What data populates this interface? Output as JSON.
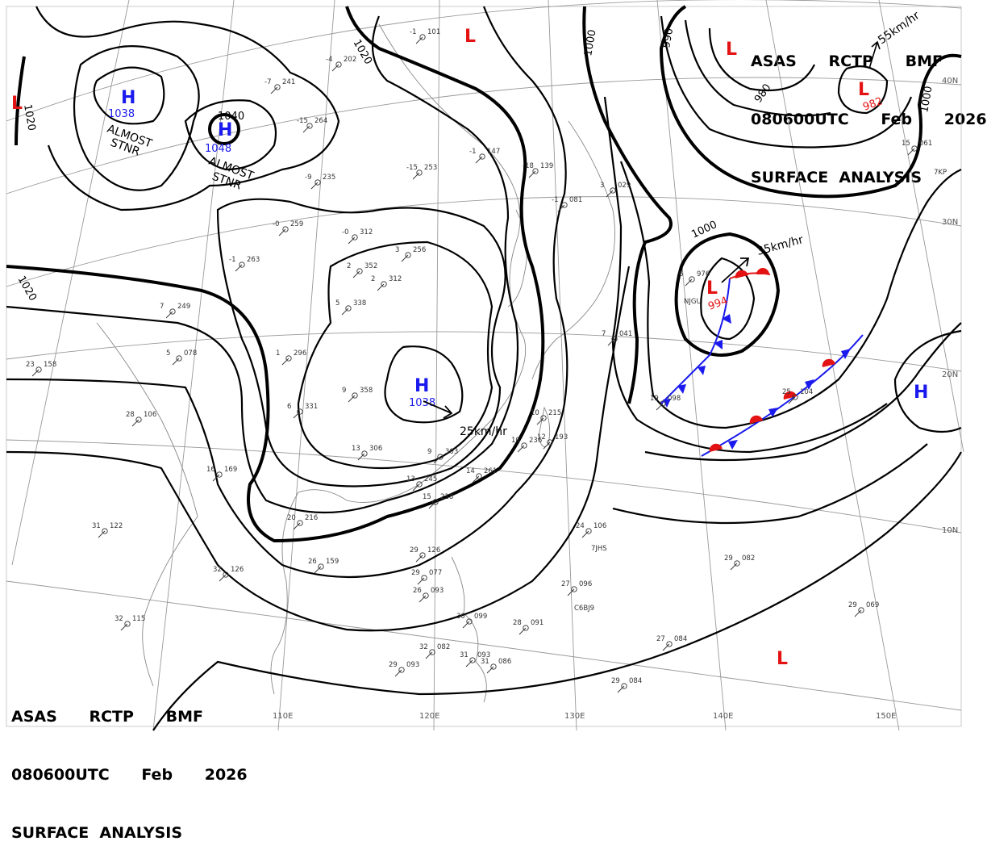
{
  "header_top": {
    "line1": "ASAS      RCTP      BMF",
    "line2": "080600UTC      Feb      2026",
    "line3": "SURFACE  ANALYSIS"
  },
  "header_bottom": {
    "line1": "ASAS      RCTP      BMF",
    "line2": "080600UTC      Feb      2026",
    "line3": "SURFACE  ANALYSIS"
  },
  "colors": {
    "high": "#1a1aee",
    "low": "#e41313",
    "isobar": "#000000",
    "grid": "#999999",
    "coast": "#888888"
  },
  "pressure_centers": {
    "high_mongolia": {
      "symbol": "H",
      "value": "1038",
      "note_line1": "ALMOST",
      "note_line2": "STNR"
    },
    "high_siberia": {
      "symbol": "H",
      "value": "1048",
      "note_line1": "ALMOST",
      "note_line2": "STNR"
    },
    "high_china": {
      "symbol": "H",
      "value": "1038",
      "motion": "25km/hr"
    },
    "high_pacific": {
      "symbol": "H"
    },
    "low_west_edge": {
      "symbol": "L"
    },
    "low_north": {
      "symbol": "L"
    },
    "low_aleutian_west": {
      "symbol": "L"
    },
    "low_aleutian_east": {
      "symbol": "L",
      "value": "982",
      "motion": "55km/hr"
    },
    "low_japan_east": {
      "symbol": "L",
      "value": "994",
      "motion": "35km/hr"
    },
    "low_south_pacific": {
      "symbol": "L"
    }
  },
  "isobar_labels": {
    "l1020_w": "1020",
    "l1020_nw": "1020",
    "l1020_n": "1020",
    "l1040": "1040",
    "l1000_n": "1000",
    "l1000_ne": "1000",
    "l1000_jp": "1000",
    "l990": "990",
    "l980": "980"
  },
  "grid_labels": {
    "lon_110": "110E",
    "lon_120": "120E",
    "lon_130": "130E",
    "lon_140": "140E",
    "lon_150": "150E",
    "lat_10": "10N",
    "lat_20": "20N",
    "lat_30": "30N",
    "lat_40": "40N"
  },
  "station_plots": [
    {
      "a": "-1",
      "b": "101"
    },
    {
      "a": "-4",
      "b": "202"
    },
    {
      "a": "-7",
      "b": "241"
    },
    {
      "a": "-15",
      "b": "264"
    },
    {
      "a": "-15",
      "b": "253"
    },
    {
      "a": "-9",
      "b": "235"
    },
    {
      "a": "-0",
      "b": "259"
    },
    {
      "a": "-0",
      "b": "312"
    },
    {
      "a": "3",
      "b": "256"
    },
    {
      "a": "-1",
      "b": "263"
    },
    {
      "a": "2",
      "b": "352"
    },
    {
      "a": "2",
      "b": "312"
    },
    {
      "a": "5",
      "b": "338"
    },
    {
      "a": "7",
      "b": "249"
    },
    {
      "a": "5",
      "b": "078"
    },
    {
      "a": "1",
      "b": "296"
    },
    {
      "a": "6",
      "b": "331"
    },
    {
      "a": "9",
      "b": "358"
    },
    {
      "a": "13",
      "b": "306"
    },
    {
      "a": "9",
      "b": "303"
    },
    {
      "a": "13",
      "b": "245"
    },
    {
      "a": "15",
      "b": "218"
    },
    {
      "a": "14",
      "b": "261"
    },
    {
      "a": "10",
      "b": "236"
    },
    {
      "a": "10",
      "b": "215"
    },
    {
      "a": "12",
      "b": "193"
    },
    {
      "a": "16",
      "b": "169"
    },
    {
      "a": "20",
      "b": "216"
    },
    {
      "a": "26",
      "b": "159"
    },
    {
      "a": "32",
      "b": "126"
    },
    {
      "a": "28",
      "b": "106"
    },
    {
      "a": "31",
      "b": "122"
    },
    {
      "a": "32",
      "b": "115"
    },
    {
      "a": "23",
      "b": "158"
    },
    {
      "a": "-1",
      "b": "147"
    },
    {
      "a": "-18",
      "b": "139"
    },
    {
      "a": "-1",
      "b": "081"
    },
    {
      "a": "3",
      "b": "029"
    },
    {
      "a": "7",
      "b": "041"
    },
    {
      "a": "6",
      "b": "976"
    },
    {
      "a": "15",
      "b": "061"
    },
    {
      "a": "19",
      "b": "098"
    },
    {
      "a": "25",
      "b": "104"
    },
    {
      "a": "24",
      "b": "106"
    },
    {
      "a": "29",
      "b": "082"
    },
    {
      "a": "27",
      "b": "096"
    },
    {
      "a": "27",
      "b": "084"
    },
    {
      "a": "29",
      "b": "084"
    },
    {
      "a": "29",
      "b": "069"
    },
    {
      "a": "29",
      "b": "126"
    },
    {
      "a": "29",
      "b": "077"
    },
    {
      "a": "26",
      "b": "093"
    },
    {
      "a": "30",
      "b": "099"
    },
    {
      "a": "28",
      "b": "091"
    },
    {
      "a": "32",
      "b": "082"
    },
    {
      "a": "31",
      "b": "093"
    },
    {
      "a": "29",
      "b": "093"
    },
    {
      "a": "31",
      "b": "086"
    }
  ],
  "ship_ids": {
    "s1": "7JHS",
    "s2": "C6BJ9",
    "s3": "NJGU",
    "s4": "7KP"
  }
}
